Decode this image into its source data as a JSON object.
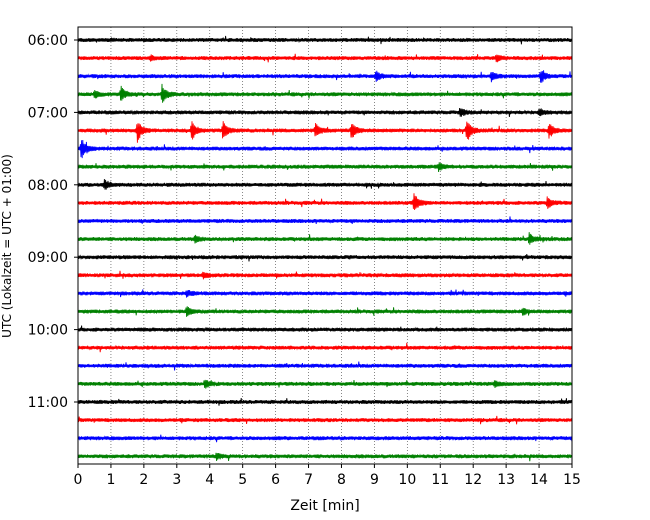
{
  "chart_data": {
    "type": "line",
    "subtype": "helicorder",
    "title": "",
    "xlabel": "Zeit  [min]",
    "ylabel": "UTC (Lokalzeit = UTC + 01:00)",
    "xlim": [
      0,
      15
    ],
    "x_ticks": [
      "0",
      "1",
      "2",
      "3",
      "4",
      "5",
      "6",
      "7",
      "8",
      "9",
      "10",
      "11",
      "12",
      "13",
      "14",
      "15"
    ],
    "y_ticks": [
      "06:00",
      "07:00",
      "08:00",
      "09:00",
      "10:00",
      "11:00"
    ],
    "grid": "vertical dotted at each minute",
    "trace_minutes": 15,
    "colors": [
      "#000000",
      "#ff0000",
      "#0000ff",
      "#008000"
    ],
    "start_time": "06:00",
    "num_traces": 24,
    "events": [
      {
        "trace": 1,
        "minute": 2.2,
        "amp": 0.25
      },
      {
        "trace": 1,
        "minute": 12.7,
        "amp": 0.35
      },
      {
        "trace": 2,
        "minute": 9.05,
        "amp": 0.55
      },
      {
        "trace": 2,
        "minute": 12.55,
        "amp": 0.45
      },
      {
        "trace": 2,
        "minute": 14.05,
        "amp": 0.65
      },
      {
        "trace": 3,
        "minute": 1.3,
        "amp": 0.75
      },
      {
        "trace": 3,
        "minute": 2.55,
        "amp": 0.95
      },
      {
        "trace": 3,
        "minute": 0.5,
        "amp": 0.35
      },
      {
        "trace": 4,
        "minute": 11.6,
        "amp": 0.4
      },
      {
        "trace": 4,
        "minute": 14.0,
        "amp": 0.35
      },
      {
        "trace": 5,
        "minute": 1.8,
        "amp": 1.1
      },
      {
        "trace": 5,
        "minute": 3.45,
        "amp": 1.0
      },
      {
        "trace": 5,
        "minute": 4.4,
        "amp": 0.9
      },
      {
        "trace": 5,
        "minute": 7.2,
        "amp": 0.75
      },
      {
        "trace": 5,
        "minute": 8.3,
        "amp": 0.85
      },
      {
        "trace": 5,
        "minute": 11.8,
        "amp": 1.25
      },
      {
        "trace": 5,
        "minute": 14.3,
        "amp": 0.75
      },
      {
        "trace": 6,
        "minute": 0.1,
        "amp": 1.1
      },
      {
        "trace": 7,
        "minute": 10.95,
        "amp": 0.4
      },
      {
        "trace": 8,
        "minute": 0.8,
        "amp": 0.55
      },
      {
        "trace": 9,
        "minute": 10.2,
        "amp": 0.95
      },
      {
        "trace": 9,
        "minute": 14.25,
        "amp": 0.6
      },
      {
        "trace": 11,
        "minute": 3.55,
        "amp": 0.35
      },
      {
        "trace": 11,
        "minute": 13.7,
        "amp": 0.55
      },
      {
        "trace": 13,
        "minute": 3.8,
        "amp": 0.3
      },
      {
        "trace": 14,
        "minute": 3.3,
        "amp": 0.35
      },
      {
        "trace": 15,
        "minute": 3.3,
        "amp": 0.5
      },
      {
        "trace": 15,
        "minute": 13.5,
        "amp": 0.35
      },
      {
        "trace": 19,
        "minute": 3.85,
        "amp": 0.45
      },
      {
        "trace": 19,
        "minute": 12.65,
        "amp": 0.3
      },
      {
        "trace": 23,
        "minute": 4.2,
        "amp": 0.35
      }
    ]
  }
}
